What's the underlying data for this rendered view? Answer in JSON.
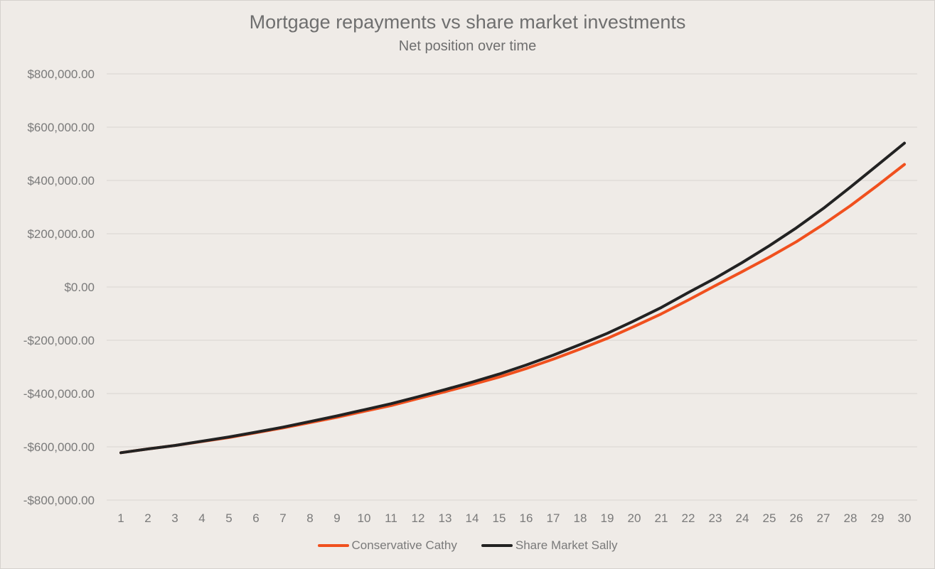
{
  "chart_data": {
    "type": "line",
    "title": "Mortgage repayments vs share market investments",
    "subtitle": "Net position over time",
    "xlabel": "",
    "ylabel": "",
    "x": [
      1,
      2,
      3,
      4,
      5,
      6,
      7,
      8,
      9,
      10,
      11,
      12,
      13,
      14,
      15,
      16,
      17,
      18,
      19,
      20,
      21,
      22,
      23,
      24,
      25,
      26,
      27,
      28,
      29,
      30
    ],
    "ylim": [
      -800000,
      800000
    ],
    "yticks": [
      800000,
      600000,
      400000,
      200000,
      0,
      -200000,
      -400000,
      -600000,
      -800000
    ],
    "ytick_labels": [
      "$800,000.00",
      "$600,000.00",
      "$400,000.00",
      "$200,000.00",
      "$0.00",
      "-$200,000.00",
      "-$400,000.00",
      "-$600,000.00",
      "-$800,000.00"
    ],
    "grid": true,
    "legend_position": "bottom",
    "series": [
      {
        "name": "Conservative Cathy",
        "color": "#f0501e",
        "values": [
          -622000,
          -608000,
          -595000,
          -580000,
          -565000,
          -547000,
          -529000,
          -509000,
          -489000,
          -467000,
          -445000,
          -419000,
          -393000,
          -366000,
          -338000,
          -306000,
          -271000,
          -233000,
          -193000,
          -148000,
          -101000,
          -49000,
          5000,
          58000,
          112000,
          170000,
          235000,
          305000,
          381000,
          460000
        ]
      },
      {
        "name": "Share Market Sally",
        "color": "#222222",
        "values": [
          -622000,
          -608000,
          -595000,
          -579000,
          -563000,
          -545000,
          -526000,
          -505000,
          -484000,
          -461000,
          -438000,
          -412000,
          -385000,
          -357000,
          -327000,
          -293000,
          -256000,
          -216000,
          -174000,
          -127000,
          -77000,
          -21000,
          33000,
          92000,
          155000,
          222000,
          295000,
          375000,
          457000,
          540000
        ]
      }
    ]
  }
}
